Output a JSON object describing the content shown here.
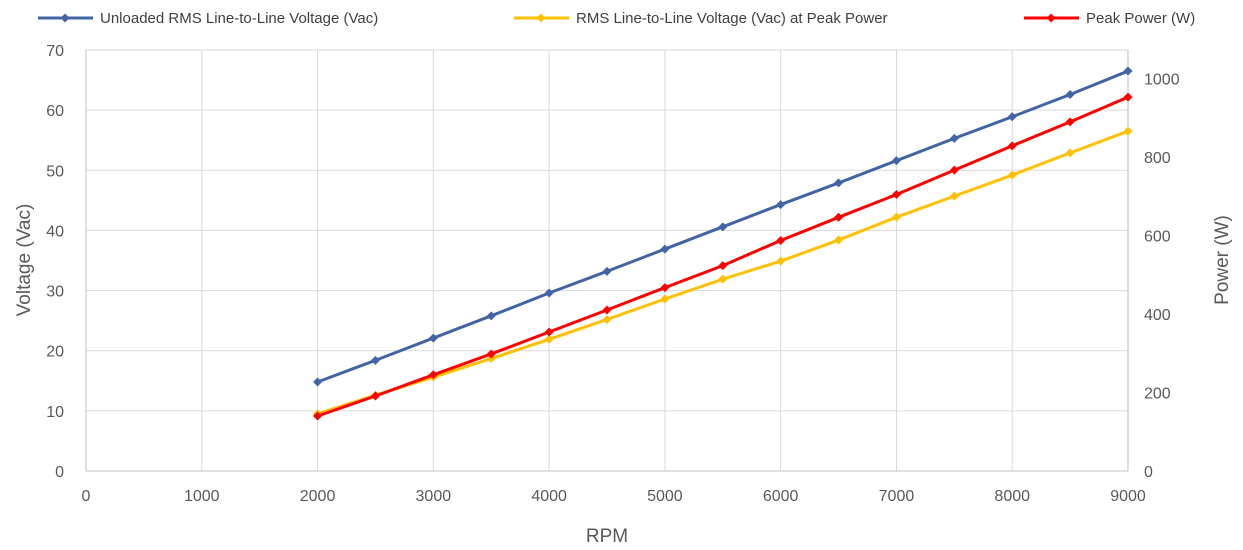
{
  "chart_data": {
    "type": "line",
    "xlabel": "RPM",
    "ylabel_left": "Voltage (Vac)",
    "ylabel_right": "Power (W)",
    "xlim": [
      0,
      9000
    ],
    "xticks": [
      0,
      1000,
      2000,
      3000,
      4000,
      5000,
      6000,
      7000,
      8000,
      9000
    ],
    "ylim_left": [
      0,
      70
    ],
    "yticks_left": [
      0,
      10,
      20,
      30,
      40,
      50,
      60,
      70
    ],
    "ylim_right": [
      0,
      1072
    ],
    "yticks_right": [
      0,
      200,
      400,
      600,
      800,
      1000
    ],
    "grid": true,
    "legend_position": "top",
    "x": [
      2000,
      2500,
      3000,
      3500,
      4000,
      4500,
      5000,
      5500,
      6000,
      6500,
      7000,
      7500,
      8000,
      8500,
      9000
    ],
    "series": [
      {
        "name": "Unloaded RMS Line-to-Line Voltage (Vac)",
        "axis": "left",
        "color": "#4264a4",
        "values": [
          14.8,
          18.4,
          22.1,
          25.8,
          29.6,
          33.2,
          36.9,
          40.6,
          44.3,
          47.9,
          51.6,
          55.3,
          58.9,
          62.6,
          66.5
        ]
      },
      {
        "name": "RMS Line-to-Line Voltage (Vac) at Peak Power",
        "axis": "left",
        "color": "#ffc000",
        "values": [
          9.5,
          12.6,
          15.6,
          18.7,
          21.9,
          25.2,
          28.6,
          31.9,
          34.9,
          38.4,
          42.2,
          45.7,
          49.2,
          52.9,
          56.5
        ]
      },
      {
        "name": "Peak Power (W)",
        "axis": "right",
        "color": "#ff0000",
        "values": [
          140,
          191,
          245,
          298,
          354,
          410,
          467,
          523,
          587,
          646,
          704,
          766,
          828,
          889,
          952
        ]
      }
    ]
  }
}
